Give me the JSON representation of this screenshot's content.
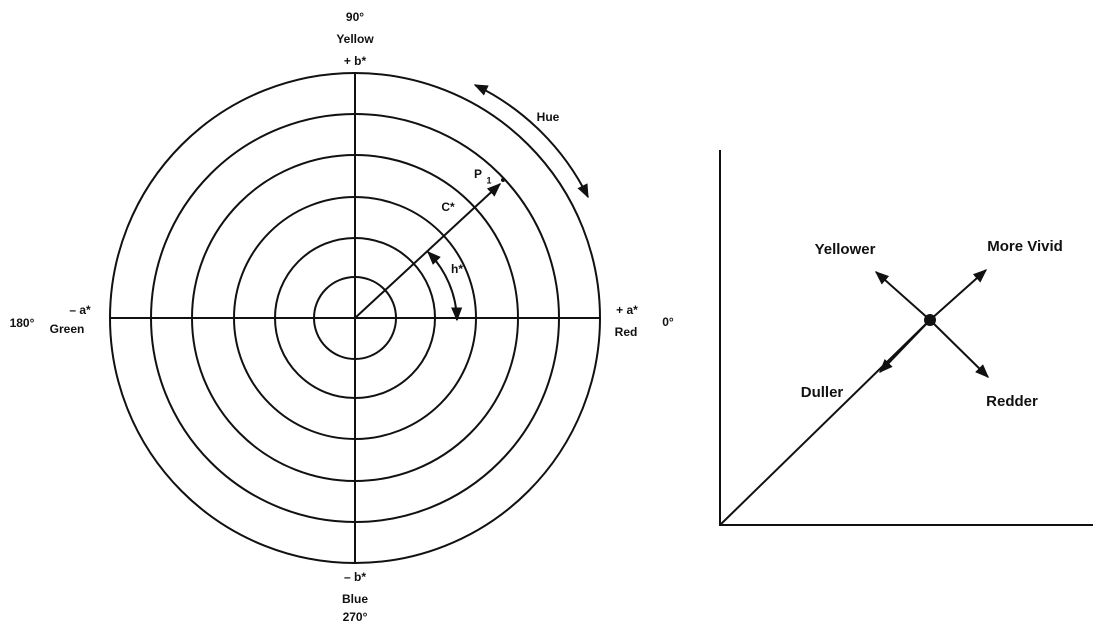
{
  "polar_diagram": {
    "top_angle": "90°",
    "top_name": "Yellow",
    "top_axis": "+ b*",
    "left_axis": "– a*",
    "left_angle": "180°",
    "left_name": "Green",
    "right_axis": "+ a*",
    "right_name": "Red",
    "right_angle": "0°",
    "bottom_axis": "– b*",
    "bottom_name": "Blue",
    "bottom_angle": "270°",
    "hue_label": "Hue",
    "point_label": "P",
    "point_subscript": "1",
    "chroma_label": "C*",
    "hue_angle_label": "h*"
  },
  "direction_diagram": {
    "yellower": "Yellower",
    "more_vivid": "More Vivid",
    "duller": "Duller",
    "redder": "Redder"
  }
}
